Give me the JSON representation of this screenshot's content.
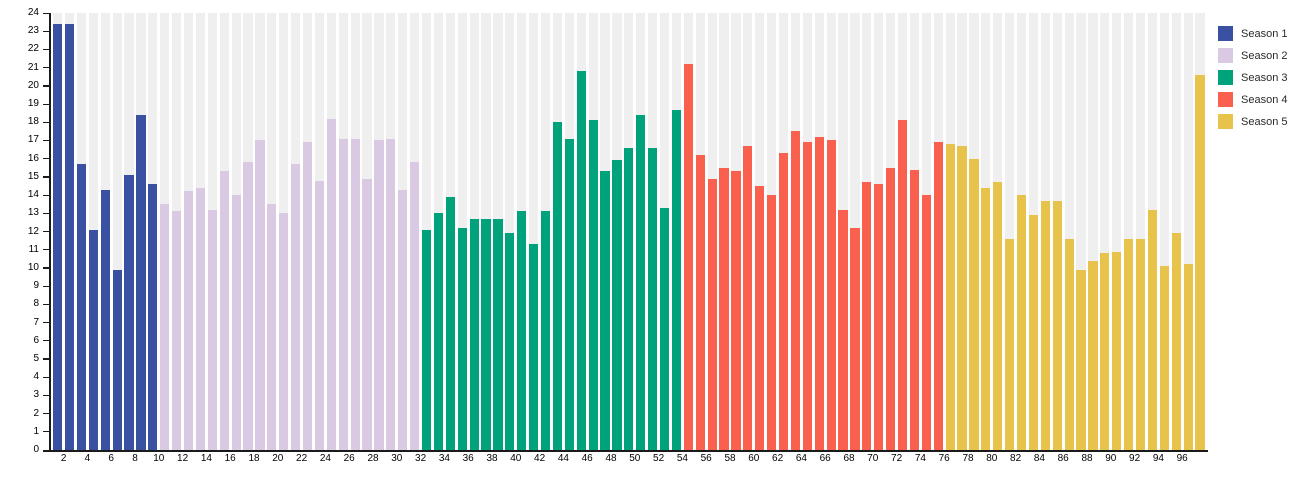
{
  "chart_data": {
    "type": "bar",
    "title": "",
    "xlabel": "",
    "ylabel": "",
    "ylim": [
      0,
      24
    ],
    "y_tick_step": 1,
    "y_ticks": [
      0,
      1,
      2,
      3,
      4,
      5,
      6,
      7,
      8,
      9,
      10,
      11,
      12,
      13,
      14,
      15,
      16,
      17,
      18,
      19,
      20,
      21,
      22,
      23,
      24
    ],
    "x_tick_labels": [
      2,
      4,
      6,
      8,
      10,
      12,
      14,
      16,
      18,
      20,
      22,
      24,
      26,
      28,
      30,
      32,
      34,
      36,
      38,
      40,
      42,
      44,
      46,
      48,
      50,
      52,
      54,
      56,
      58,
      60,
      62,
      64,
      66,
      68,
      70,
      72,
      74,
      76,
      78,
      80,
      82,
      84,
      86,
      88,
      90,
      92,
      94,
      96
    ],
    "x_description": "episode number 1-97",
    "grid": "vertical-background-bands",
    "band_color": "#efefef",
    "axis_color": "#1a1a1a",
    "legend_position": "top-right",
    "series": [
      {
        "name": "Season 1",
        "color": "#3a50a3",
        "first_episode": 1,
        "values": [
          23.4,
          23.4,
          15.7,
          12.1,
          14.3,
          9.9,
          15.1,
          18.4,
          14.6
        ]
      },
      {
        "name": "Season 2",
        "color": "#dac9e3",
        "first_episode": 10,
        "values": [
          13.5,
          13.1,
          14.2,
          14.4,
          13.2,
          15.3,
          14.0,
          15.8,
          17.0,
          13.5,
          13.0,
          15.7,
          16.9,
          14.8,
          18.2,
          17.1,
          17.1,
          14.9,
          17.0,
          17.1,
          14.3,
          15.8
        ]
      },
      {
        "name": "Season 3",
        "color": "#00a27b",
        "first_episode": 32,
        "values": [
          12.1,
          13.0,
          13.9,
          12.2,
          12.7,
          12.7,
          12.7,
          11.9,
          13.1,
          11.3,
          13.1,
          18.0,
          17.1,
          20.8,
          18.1,
          15.3,
          15.9,
          16.6,
          18.4,
          16.6,
          13.3,
          18.7
        ]
      },
      {
        "name": "Season 4",
        "color": "#f9604e",
        "first_episode": 54,
        "values": [
          21.2,
          16.2,
          14.9,
          15.5,
          15.3,
          16.7,
          14.5,
          14.0,
          16.3,
          17.5,
          16.9,
          17.2,
          17.0,
          13.2,
          12.2,
          14.7,
          14.6,
          15.5,
          18.1,
          15.4,
          14.0,
          16.9
        ]
      },
      {
        "name": "Season 5",
        "color": "#e7c34b",
        "first_episode": 76,
        "values": [
          16.8,
          16.7,
          16.0,
          14.4,
          14.7,
          11.6,
          14.0,
          12.9,
          13.7,
          13.7,
          11.6,
          9.9,
          10.4,
          10.8,
          10.9,
          11.6,
          11.6,
          13.2,
          10.1,
          11.9,
          10.2,
          20.6
        ]
      }
    ]
  },
  "legend": {
    "items": [
      {
        "label": "Season 1",
        "color": "#3a50a3"
      },
      {
        "label": "Season 2",
        "color": "#dac9e3"
      },
      {
        "label": "Season 3",
        "color": "#00a27b"
      },
      {
        "label": "Season 4",
        "color": "#f9604e"
      },
      {
        "label": "Season 5",
        "color": "#e7c34b"
      }
    ]
  }
}
